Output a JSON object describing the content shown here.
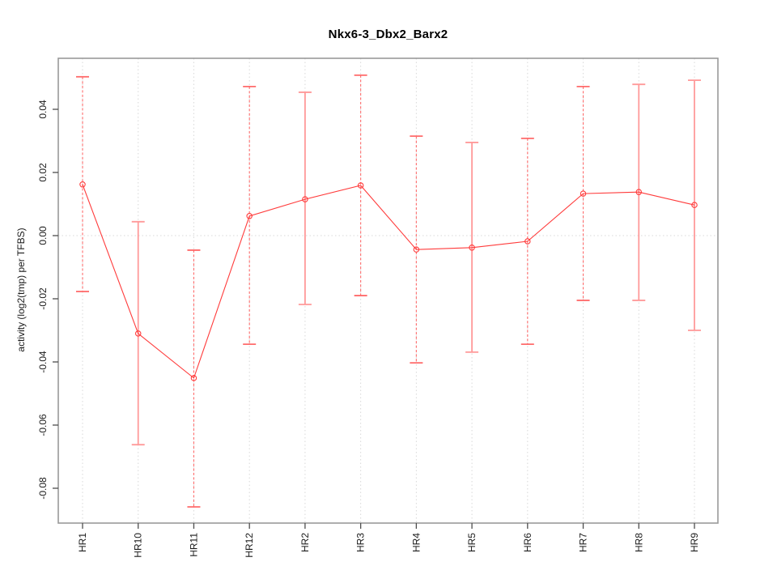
{
  "title": "Nkx6-3_Dbx2_Barx2",
  "ylabel": "activity (log2(tmp) per TFBS)",
  "chart_data": {
    "type": "line",
    "title": "Nkx6-3_Dbx2_Barx2",
    "xlabel": "",
    "ylabel": "activity (log2(tmp) per TFBS)",
    "categories": [
      "HR1",
      "HR10",
      "HR11",
      "HR12",
      "HR2",
      "HR3",
      "HR4",
      "HR5",
      "HR6",
      "HR7",
      "HR8",
      "HR9"
    ],
    "series": [
      {
        "name": "activity",
        "values": [
          0.0162,
          -0.031,
          -0.0451,
          0.0062,
          0.0115,
          0.0159,
          -0.0044,
          -0.0038,
          -0.0018,
          0.0133,
          0.0138,
          0.0097
        ],
        "error_upper": [
          0.0503,
          0.0044,
          -0.0046,
          0.0472,
          0.0454,
          0.0508,
          0.0315,
          0.0295,
          0.0308,
          0.0472,
          0.0479,
          0.0492
        ],
        "error_lower": [
          -0.0177,
          -0.0662,
          -0.0859,
          -0.0344,
          -0.0218,
          -0.019,
          -0.0403,
          -0.0369,
          -0.0344,
          -0.0205,
          -0.0205,
          -0.03
        ],
        "bar_styles": [
          "dashed",
          "solid",
          "dashed",
          "dashed",
          "solid",
          "dashed",
          "dashed",
          "solid",
          "dashed",
          "dashed",
          "solid",
          "solid"
        ]
      }
    ],
    "yticks": [
      0.04,
      0.02,
      0,
      -0.02,
      -0.04,
      -0.06,
      -0.08
    ],
    "ytick_labels": [
      "0.04",
      "0.02",
      "0.00",
      "-0.02",
      "-0.04",
      "-0.06",
      "-0.08"
    ],
    "ylim": [
      -0.09103,
      0.05615
    ],
    "grid": {
      "vertical_at_categories": true,
      "horizontal_zero_line": true
    },
    "legend": "none",
    "marker": "open-circle",
    "colors": {
      "point": "#ff3b3b",
      "line": "#ff3b3b",
      "error_bar_solid": "#ff9a9a",
      "error_bar_dashed": "#ff6b6b",
      "grid": "#d8d8d8",
      "box": "#999999",
      "tick": "#4d4d4d",
      "tick_text": "#1a1a1a",
      "title_text": "#000000"
    }
  }
}
